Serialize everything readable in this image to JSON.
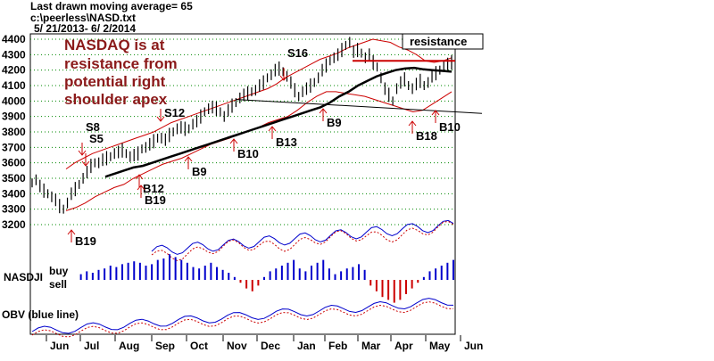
{
  "header": {
    "line1": "Last drawn moving average= 65",
    "line2": "c:\\peerless\\NASD.txt",
    "line3": "5/ 21/2013- 6/ 2/2014"
  },
  "annotation": {
    "lines": [
      "NASDAQ is at",
      "resistance from",
      "potential right",
      "shoulder apex"
    ],
    "color": "#8b1a1a"
  },
  "resistance_label": "resistance",
  "panel_labels": {
    "nasdji": "NASDJI",
    "buy": "buy",
    "sell": "sell",
    "obv": "OBV (blue line)"
  },
  "colors": {
    "price_bars": "#000000",
    "bands": "#cc0000",
    "ma": "#000000",
    "arrows": "#cc0000",
    "grid": "#008800",
    "blue": "#0000cc",
    "red": "#cc0000",
    "trendline": "#000000"
  },
  "chart_data": {
    "type": "line",
    "title": "Last drawn moving average= 65",
    "ylim": [
      3200,
      4400
    ],
    "yticks": [
      4400,
      4300,
      4200,
      4100,
      4000,
      3900,
      3800,
      3700,
      3600,
      3500,
      3400,
      3300,
      3200
    ],
    "months": [
      "Jun",
      "Jul",
      "Aug",
      "Sep",
      "Oct",
      "Nov",
      "Dec",
      "Jan",
      "Feb",
      "Mar",
      "Apr",
      "May",
      "Jun"
    ],
    "price": [
      3470,
      3490,
      3450,
      3420,
      3400,
      3380,
      3360,
      3320,
      3300,
      3340,
      3400,
      3430,
      3460,
      3500,
      3540,
      3580,
      3600,
      3600,
      3620,
      3630,
      3640,
      3660,
      3670,
      3680,
      3660,
      3640,
      3650,
      3660,
      3690,
      3700,
      3720,
      3740,
      3760,
      3760,
      3750,
      3780,
      3800,
      3820,
      3830,
      3820,
      3820,
      3850,
      3870,
      3900,
      3930,
      3950,
      3960,
      3950,
      3930,
      3900,
      3940,
      3970,
      3990,
      4020,
      4040,
      4050,
      4060,
      4070,
      4100,
      4120,
      4150,
      4170,
      4200,
      4210,
      4190,
      4160,
      4120,
      4070,
      4030,
      4060,
      4080,
      4100,
      4120,
      4150,
      4200,
      4230,
      4260,
      4280,
      4300,
      4330,
      4360,
      4380,
      4320,
      4330,
      4310,
      4280,
      4300,
      4250,
      4220,
      4150,
      4080,
      4040,
      4000,
      4080,
      4120,
      4140,
      4100,
      4080,
      4110,
      4130,
      4100,
      4120,
      4160,
      4180,
      4200,
      4230,
      4240,
      4250
    ],
    "ma65": [
      3510,
      3530,
      3550,
      3570,
      3580,
      3600,
      3620,
      3640,
      3660,
      3680,
      3700,
      3720,
      3740,
      3760,
      3780,
      3800,
      3820,
      3840,
      3860,
      3880,
      3900,
      3920,
      3940,
      3960,
      3990,
      4030,
      4060,
      4100,
      4130,
      4160,
      4180,
      4200,
      4210,
      4215,
      4205,
      4200,
      4195,
      4190
    ],
    "upper_band": [
      3560,
      3600,
      3630,
      3660,
      3680,
      3700,
      3720,
      3740,
      3760,
      3780,
      3800,
      3830,
      3860,
      3880,
      3900,
      3920,
      3940,
      3960,
      3980,
      4000,
      4020,
      4040,
      4060,
      4080,
      4110,
      4150,
      4180,
      4210,
      4240,
      4270,
      4290,
      4310,
      4340,
      4360,
      4380,
      4400,
      4390,
      4380,
      4350,
      4330,
      4300,
      4260,
      4250,
      4260,
      4280
    ],
    "lower_band": [
      3290,
      3310,
      3340,
      3380,
      3410,
      3440,
      3460,
      3500,
      3530,
      3560,
      3590,
      3610,
      3630,
      3660,
      3690,
      3720,
      3740,
      3760,
      3790,
      3810,
      3830,
      3860,
      3880,
      3900,
      3940,
      3990,
      4030,
      4060,
      4060,
      4050,
      4040,
      4030,
      4010,
      3990,
      3970,
      3950,
      3930,
      3940,
      3980,
      4020,
      4060
    ],
    "resistance_level": 4260,
    "signals": [
      {
        "label": "B19",
        "direction": "up"
      },
      {
        "label": "S8",
        "direction": "down"
      },
      {
        "label": "S5",
        "direction": "down"
      },
      {
        "label": "B12",
        "direction": "up"
      },
      {
        "label": "B19",
        "direction": "up"
      },
      {
        "label": "B9",
        "direction": "up"
      },
      {
        "label": "S12",
        "direction": "down"
      },
      {
        "label": "B10",
        "direction": "up"
      },
      {
        "label": "B13",
        "direction": "up"
      },
      {
        "label": "S16",
        "direction": "down"
      },
      {
        "label": "B9",
        "direction": "up"
      },
      {
        "label": "B18",
        "direction": "up"
      },
      {
        "label": "B10",
        "direction": "up"
      }
    ],
    "nasdji": [
      0,
      4,
      6,
      5,
      7,
      8,
      10,
      9,
      11,
      12,
      13,
      12,
      10,
      11,
      14,
      15,
      18,
      16,
      14,
      12,
      9,
      8,
      10,
      12,
      9,
      7,
      5,
      2,
      -2,
      -6,
      -8,
      -4,
      2,
      6,
      8,
      10,
      12,
      14,
      8,
      6,
      10,
      12,
      14,
      8,
      4,
      6,
      8,
      9,
      11,
      7,
      -4,
      -8,
      -12,
      -14,
      -16,
      -14,
      -10,
      -6,
      -2,
      2,
      6,
      8,
      10,
      12,
      14
    ]
  }
}
